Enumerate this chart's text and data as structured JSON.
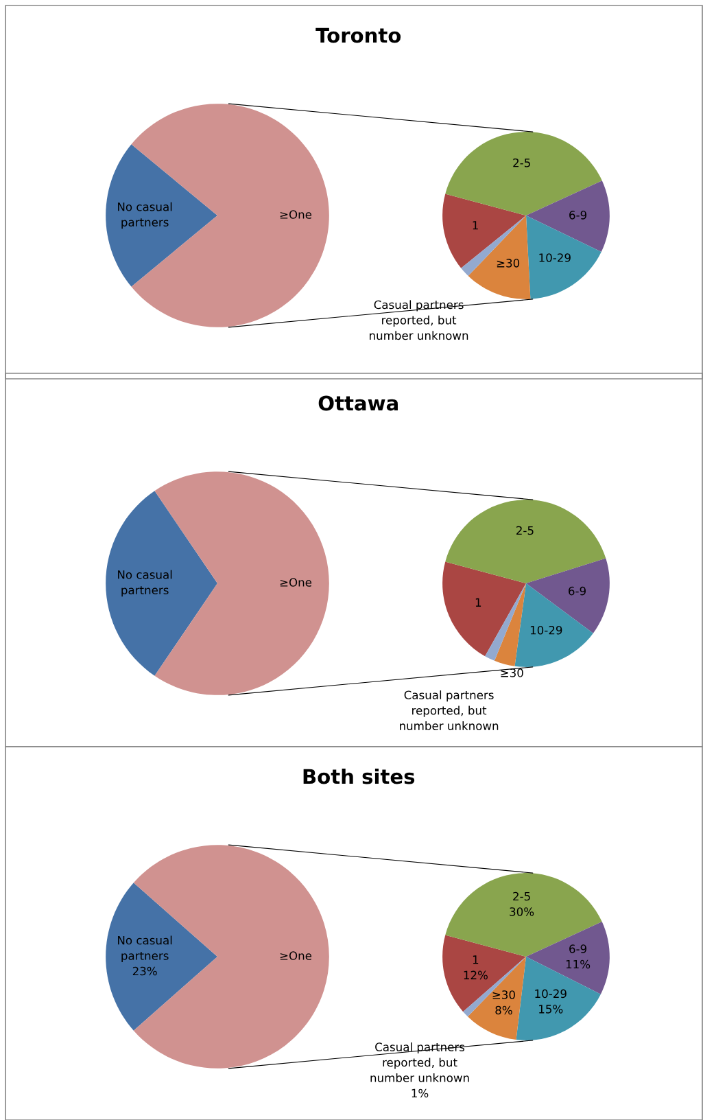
{
  "chart_data": [
    {
      "type": "pie",
      "title": "Toronto",
      "categories": [
        "No casual\npartners",
        "≥One"
      ],
      "values": [
        22,
        78
      ],
      "colors": [
        "#4572a7",
        "#d09290"
      ]
    },
    {
      "type": "pie",
      "categories": [
        "1",
        "2-5",
        "6-9",
        "10-29",
        "≥30",
        "Casual partners\nreported, but\nnumber unknown"
      ],
      "values": [
        15,
        39,
        14,
        17,
        13,
        2
      ],
      "colors": [
        "#aa4643",
        "#89a54e",
        "#71588f",
        "#4198af",
        "#db843d",
        "#93a9cf"
      ]
    },
    {
      "type": "pie",
      "title": "Ottawa",
      "categories": [
        "No casual\npartners",
        "≥One"
      ],
      "values": [
        31,
        69
      ],
      "colors": [
        "#4572a7",
        "#d09290"
      ]
    },
    {
      "type": "pie",
      "categories": [
        "1",
        "2-5",
        "6-9",
        "10-29",
        "≥30",
        "Casual partners\nreported, but\nnumber unknown"
      ],
      "values": [
        21,
        41,
        15,
        17,
        4,
        2
      ],
      "colors": [
        "#aa4643",
        "#89a54e",
        "#71588f",
        "#4198af",
        "#db843d",
        "#93a9cf"
      ]
    },
    {
      "type": "pie",
      "title": "Both sites",
      "categories": [
        "No casual\npartners",
        "≥One"
      ],
      "values": [
        23,
        77
      ],
      "value_labels": [
        "23%",
        null
      ],
      "colors": [
        "#4572a7",
        "#d09290"
      ]
    },
    {
      "type": "pie",
      "categories": [
        "1",
        "2-5",
        "6-9",
        "10-29",
        "≥30",
        "Casual partners\nreported, but\nnumber unknown"
      ],
      "values": [
        12,
        30,
        11,
        15,
        8,
        1
      ],
      "value_labels": [
        "12%",
        "30%",
        "11%",
        "15%",
        "8%",
        "1%"
      ],
      "colors": [
        "#aa4643",
        "#89a54e",
        "#71588f",
        "#4198af",
        "#db843d",
        "#93a9cf"
      ]
    }
  ]
}
